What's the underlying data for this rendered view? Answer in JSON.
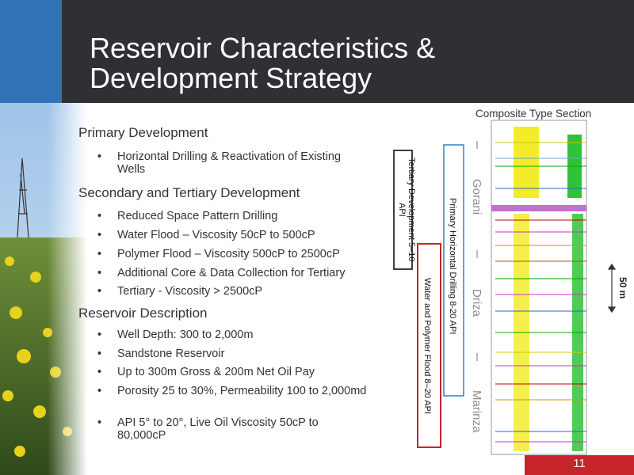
{
  "header": {
    "title": "Reservoir Characteristics & Development Strategy"
  },
  "sections": [
    {
      "heading": "Primary Development",
      "bullets": [
        "Horizontal Drilling & Reactivation of Existing Wells"
      ]
    },
    {
      "heading": "Secondary and Tertiary Development",
      "bullets": [
        "Reduced Space Pattern Drilling",
        "Water Flood – Viscosity 50cP to 500cP",
        "Polymer Flood – Viscosity 500cP to 2500cP",
        "Additional Core & Data Collection for Tertiary",
        "Tertiary - Viscosity > 2500cP"
      ]
    },
    {
      "heading": "Reservoir Description",
      "bullets": [
        "Well Depth: 300 to 2,000m",
        "Sandstone Reservoir",
        "Up to 300m Gross & 200m Net Oil Pay",
        "Porosity 25 to 30%, Permeability 100 to 2,000md",
        "API 5° to 20°, Live Oil Viscosity 50cP to 80,000cP"
      ]
    }
  ],
  "figure": {
    "title": "Composite Type Section",
    "stages": [
      "Tertiary Development  5–10 API",
      "Primary  Horizontal Drilling   8-20 API",
      "Water and Polymer Flood   8–20 API"
    ],
    "formations": [
      "Gorani",
      "Driza",
      "Marinza"
    ],
    "scale": "50 m"
  },
  "page_number": "11"
}
